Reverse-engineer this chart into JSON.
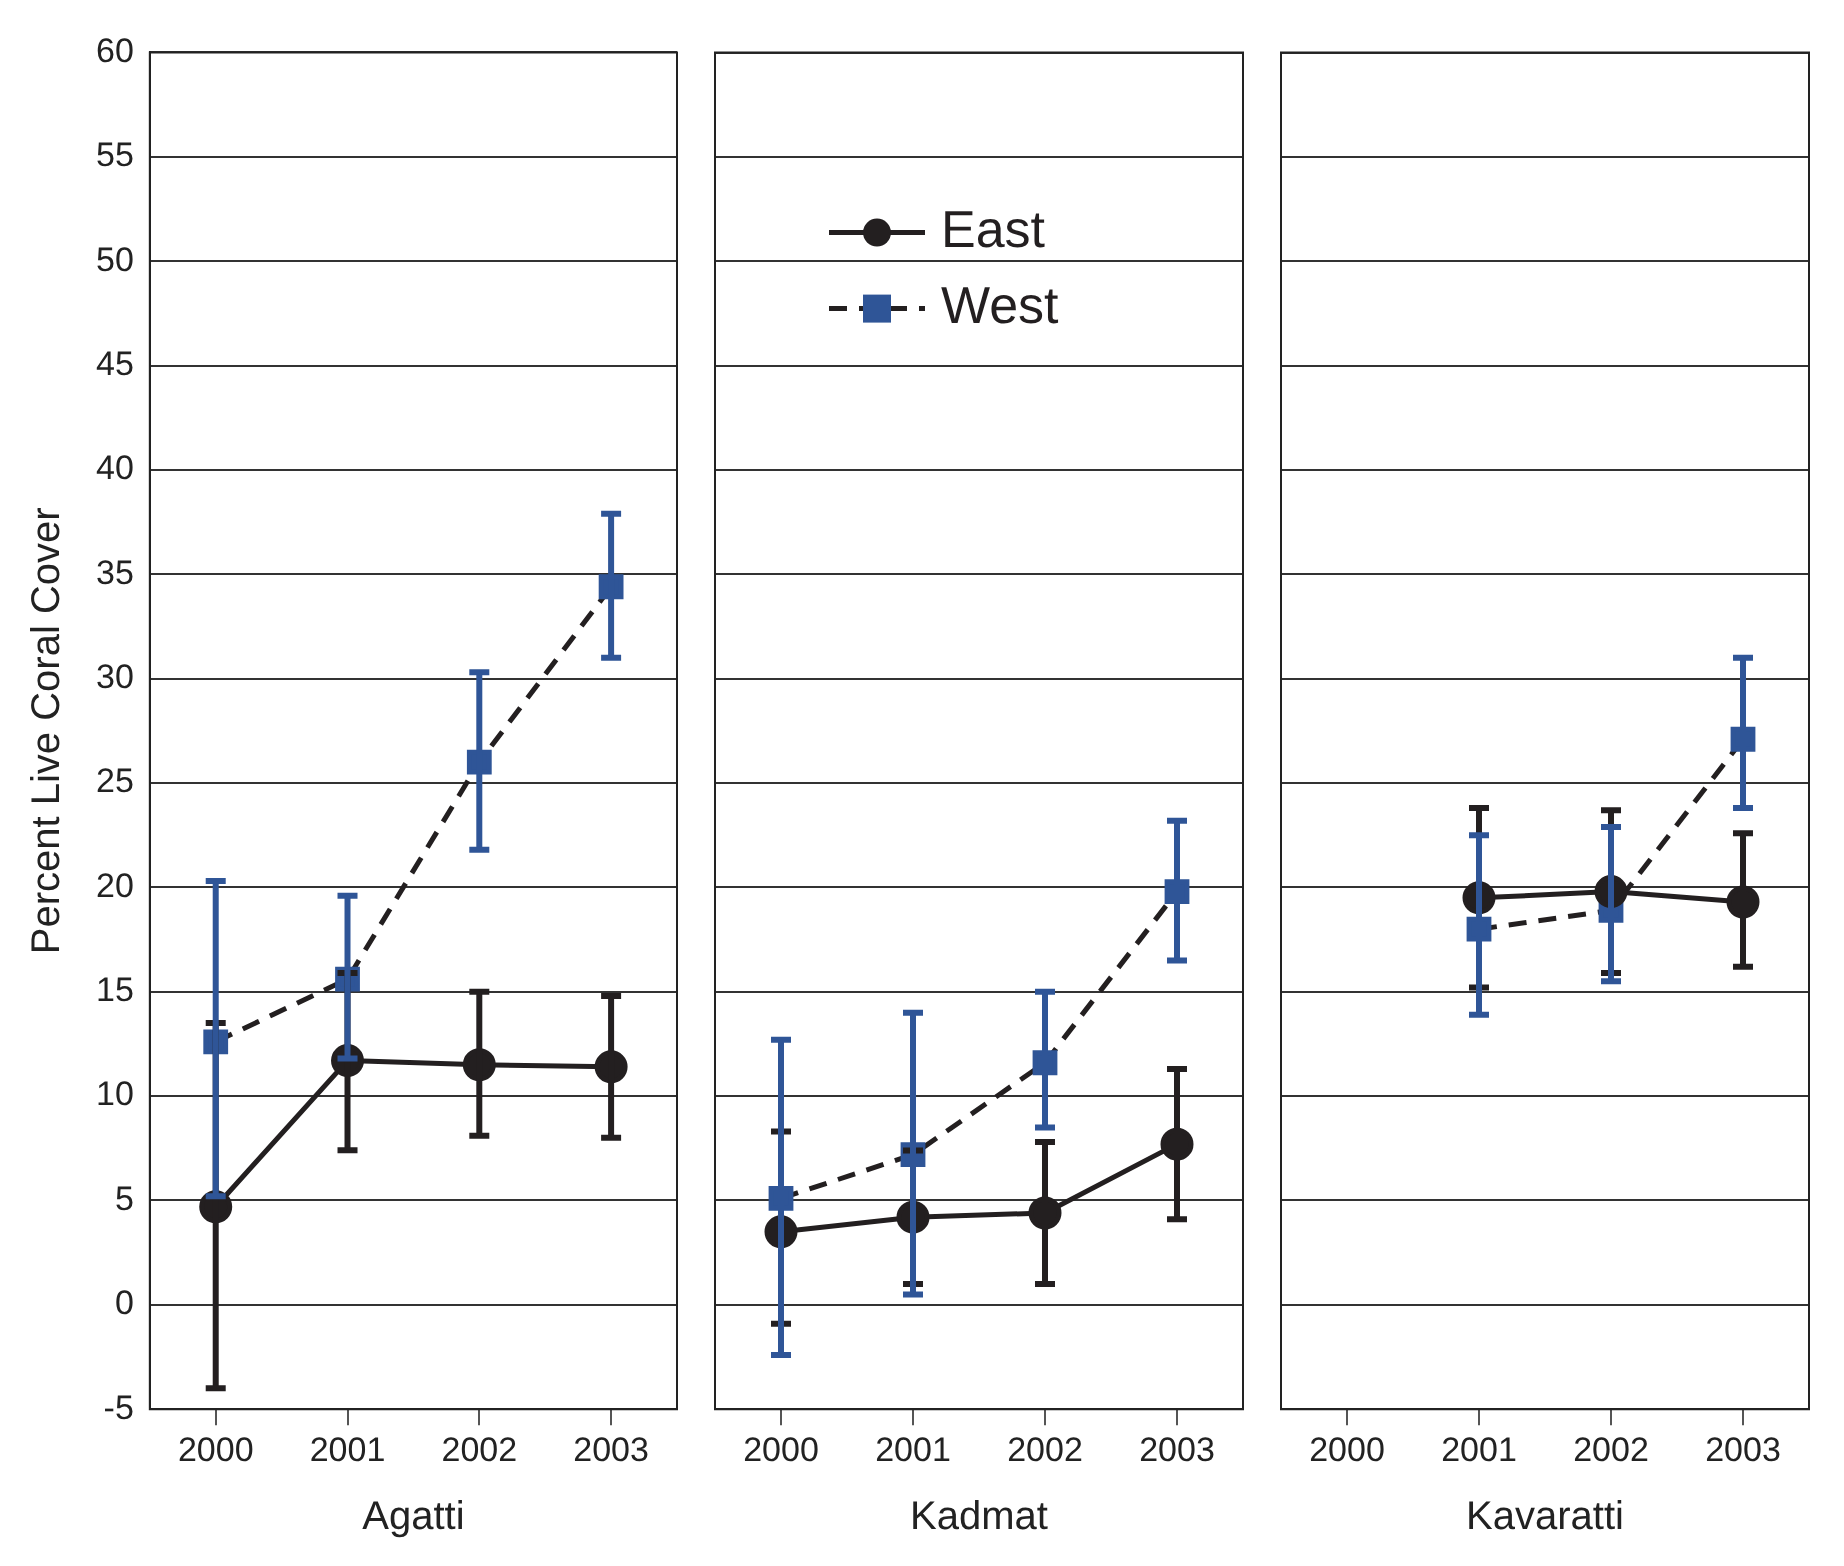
{
  "chart_data": [
    {
      "type": "line",
      "xlabel": "Agatti",
      "ylabel": "Percent Live Coral Cover",
      "categories": [
        "2000",
        "2001",
        "2002",
        "2003"
      ],
      "ylim": [
        -5,
        60
      ],
      "yticks": [
        -5,
        0,
        5,
        10,
        15,
        20,
        25,
        30,
        35,
        40,
        45,
        50,
        55,
        60
      ],
      "grid": "y",
      "legend": false,
      "series": [
        {
          "color": "#231f20",
          "marker": "circle",
          "line_style": "solid",
          "values": [
            4.7,
            11.7,
            11.5,
            11.4
          ],
          "errors": [
            [
              -4,
              13.5
            ],
            [
              7.4,
              15.9
            ],
            [
              8.1,
              15
            ],
            [
              8,
              14.8
            ]
          ]
        },
        {
          "color": "#2f5597",
          "marker": "square",
          "line_style": "dashed",
          "values": [
            12.6,
            15.6,
            26,
            34.4
          ],
          "errors": [
            [
              5.2,
              20.3
            ],
            [
              11.8,
              19.6
            ],
            [
              21.8,
              30.3
            ],
            [
              31,
              37.9
            ]
          ]
        }
      ]
    },
    {
      "type": "line",
      "xlabel": "Kadmat",
      "categories": [
        "2000",
        "2001",
        "2002",
        "2003"
      ],
      "ylim": [
        -5,
        60
      ],
      "yticks": [
        -5,
        0,
        5,
        10,
        15,
        20,
        25,
        30,
        35,
        40,
        45,
        50,
        55,
        60
      ],
      "grid": "y",
      "legend": "top",
      "tick_labels": "x",
      "series": [
        {
          "name": "East",
          "color": "#231f20",
          "marker": "circle",
          "line_style": "solid",
          "values": [
            3.5,
            4.2,
            4.4,
            7.7
          ],
          "errors": [
            [
              -0.9,
              8.3
            ],
            [
              1,
              7.4
            ],
            [
              1,
              7.8
            ],
            [
              4.1,
              11.3
            ]
          ]
        },
        {
          "name": "West",
          "color": "#2f5597",
          "marker": "square",
          "line_style": "dashed",
          "values": [
            5.1,
            7.2,
            11.6,
            19.8
          ],
          "errors": [
            [
              -2.4,
              12.7
            ],
            [
              0.5,
              14
            ],
            [
              8.5,
              15
            ],
            [
              16.5,
              23.2
            ]
          ]
        }
      ]
    },
    {
      "type": "line",
      "xlabel": "Kavaratti",
      "categories": [
        "2000",
        "2001",
        "2002",
        "2003"
      ],
      "ylim": [
        -5,
        60
      ],
      "yticks": [
        -5,
        0,
        5,
        10,
        15,
        20,
        25,
        30,
        35,
        40,
        45,
        50,
        55,
        60
      ],
      "grid": "y",
      "legend": false,
      "tick_labels": "x",
      "series": [
        {
          "color": "#231f20",
          "marker": "circle",
          "line_style": "solid",
          "values": [
            null,
            19.5,
            19.8,
            19.3
          ],
          "errors": [
            null,
            [
              15.2,
              23.8
            ],
            [
              15.9,
              23.7
            ],
            [
              16.2,
              22.6
            ]
          ]
        },
        {
          "color": "#2f5597",
          "marker": "square",
          "line_style": "dashed",
          "values": [
            null,
            18,
            18.9,
            27.1
          ],
          "errors": [
            null,
            [
              13.9,
              22.5
            ],
            [
              15.5,
              22.9
            ],
            [
              23.8,
              31
            ]
          ]
        }
      ]
    }
  ]
}
